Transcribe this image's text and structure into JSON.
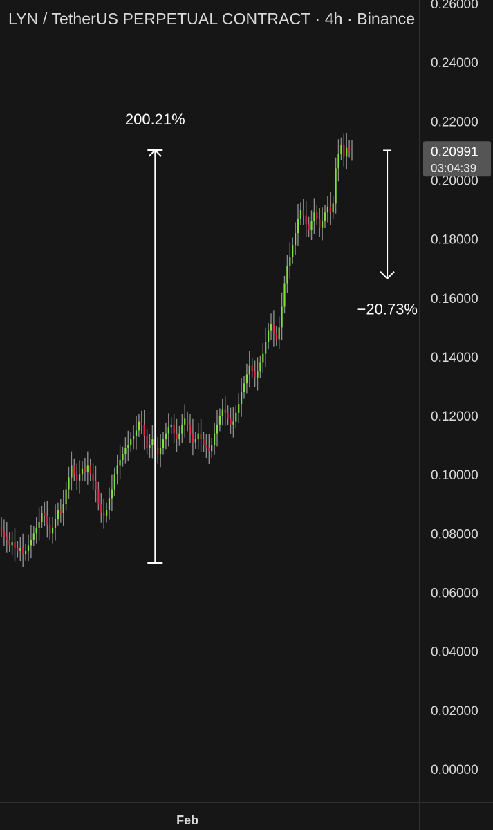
{
  "header": {
    "title": "LYN / TetherUS PERPETUAL CONTRACT · 4h · Binance"
  },
  "colors": {
    "background": "#161616",
    "up": "#7ee03a",
    "down": "#e2264a",
    "neutral": "#8c8c8c",
    "text": "#d9d9d9",
    "tool": "#ffffff",
    "price_label_bg": "#555555"
  },
  "chart_data": {
    "type": "candlestick",
    "title": "LYN / TetherUS PERPETUAL CONTRACT · 4h · Binance",
    "xlabel": "",
    "ylabel": "",
    "ylim": [
      0,
      0.26
    ],
    "y_ticks": [
      "0.26000",
      "0.24000",
      "0.22000",
      "0.20000",
      "0.18000",
      "0.16000",
      "0.14000",
      "0.12000",
      "0.10000",
      "0.08000",
      "0.06000",
      "0.04000",
      "0.02000",
      "0.00000"
    ],
    "x_ticks": [
      {
        "label": "Feb",
        "index": 69
      }
    ],
    "grid": false,
    "last_price": {
      "value": 0.20991,
      "price_label": "0.20991",
      "countdown": "03:04:39"
    },
    "closes": [
      0.081,
      0.079,
      0.078,
      0.076,
      0.077,
      0.075,
      0.074,
      0.075,
      0.073,
      0.074,
      0.076,
      0.078,
      0.08,
      0.082,
      0.084,
      0.087,
      0.086,
      0.083,
      0.08,
      0.082,
      0.085,
      0.088,
      0.087,
      0.09,
      0.095,
      0.099,
      0.103,
      0.1,
      0.098,
      0.1,
      0.102,
      0.101,
      0.103,
      0.1,
      0.098,
      0.095,
      0.09,
      0.087,
      0.086,
      0.088,
      0.092,
      0.095,
      0.1,
      0.103,
      0.105,
      0.107,
      0.109,
      0.11,
      0.112,
      0.113,
      0.115,
      0.118,
      0.117,
      0.113,
      0.109,
      0.11,
      0.112,
      0.109,
      0.107,
      0.109,
      0.112,
      0.114,
      0.116,
      0.117,
      0.114,
      0.112,
      0.114,
      0.117,
      0.119,
      0.117,
      0.114,
      0.111,
      0.112,
      0.114,
      0.112,
      0.11,
      0.109,
      0.108,
      0.11,
      0.114,
      0.117,
      0.12,
      0.122,
      0.121,
      0.119,
      0.117,
      0.118,
      0.121,
      0.124,
      0.128,
      0.131,
      0.134,
      0.137,
      0.135,
      0.133,
      0.135,
      0.138,
      0.141,
      0.145,
      0.149,
      0.151,
      0.148,
      0.146,
      0.15,
      0.157,
      0.165,
      0.171,
      0.174,
      0.178,
      0.182,
      0.187,
      0.19,
      0.188,
      0.185,
      0.183,
      0.186,
      0.189,
      0.187,
      0.184,
      0.186,
      0.189,
      0.191,
      0.189,
      0.192,
      0.204,
      0.209,
      0.212,
      0.208,
      0.211,
      0.21,
      0.20991
    ],
    "measure_up": {
      "label": "200.21%",
      "from_index": 57,
      "from_value": 0.07,
      "to_value": 0.2102
    },
    "measure_down": {
      "label": "−20.73%",
      "index": 129,
      "from_value": 0.2101,
      "to_value": 0.1666
    }
  }
}
